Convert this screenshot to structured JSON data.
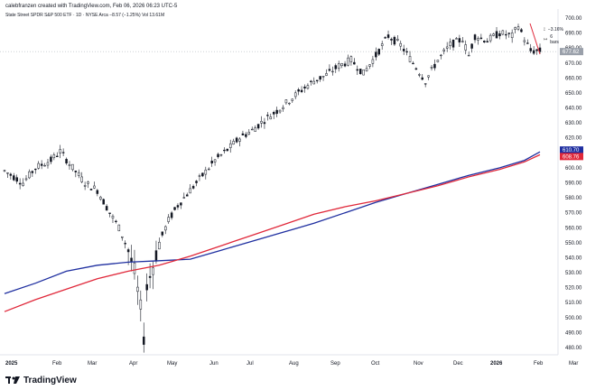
{
  "header": {
    "author_line": "calebfranzen created with TradingView.com, Feb 06, 2026 06:23 UTC-5",
    "symbol_line": "State Street SPDR S&P 500 ETF · 1D · NYSE Arca  −8.57 (−1.25%)  Vol 13.61M"
  },
  "footer": {
    "brand": "TradingView"
  },
  "measure": {
    "pct": "−3.16%",
    "bars": "6 bars"
  },
  "colors": {
    "candle": "#131722",
    "ma_blue": "#1f2fa0",
    "ma_red": "#e0283a",
    "price_badge": "#9aa0aa",
    "measure_line": "#e0283a"
  },
  "chart_data": {
    "type": "candlestick",
    "y_axis": {
      "min": 480,
      "max": 700,
      "step": 10,
      "position": "right"
    },
    "x_labels": [
      "2025",
      "Feb",
      "Mar",
      "Apr",
      "May",
      "Jun",
      "Jul",
      "Aug",
      "Sep",
      "Oct",
      "Nov",
      "Dec",
      "2026",
      "Feb",
      "Mar"
    ],
    "x_labels_bold": [
      "2025",
      "2026"
    ],
    "last_price": "677.62",
    "series": [
      {
        "name": "",
        "kind": "moving-average",
        "color": "#1f2fa0",
        "last_label": "610.70",
        "points": [
          [
            0,
            516
          ],
          [
            10,
            523
          ],
          [
            20,
            531
          ],
          [
            30,
            535
          ],
          [
            40,
            537
          ],
          [
            50,
            538
          ],
          [
            60,
            539
          ],
          [
            70,
            545
          ],
          [
            80,
            551
          ],
          [
            90,
            557
          ],
          [
            100,
            563
          ],
          [
            110,
            570
          ],
          [
            120,
            577
          ],
          [
            130,
            583
          ],
          [
            140,
            589
          ],
          [
            150,
            595
          ],
          [
            160,
            600
          ],
          [
            168,
            605
          ],
          [
            173,
            610.7
          ]
        ]
      },
      {
        "name": "",
        "kind": "moving-average",
        "color": "#e0283a",
        "last_label": "608.76",
        "points": [
          [
            0,
            504
          ],
          [
            10,
            512
          ],
          [
            20,
            519
          ],
          [
            30,
            526
          ],
          [
            40,
            531
          ],
          [
            50,
            535
          ],
          [
            60,
            541
          ],
          [
            70,
            548
          ],
          [
            80,
            555
          ],
          [
            90,
            562
          ],
          [
            100,
            569
          ],
          [
            110,
            574
          ],
          [
            120,
            578
          ],
          [
            130,
            583
          ],
          [
            140,
            588
          ],
          [
            150,
            594
          ],
          [
            160,
            599
          ],
          [
            168,
            604
          ],
          [
            173,
            608.76
          ]
        ]
      }
    ],
    "price_path": [
      [
        0,
        598
      ],
      [
        6,
        590
      ],
      [
        10,
        600
      ],
      [
        15,
        605
      ],
      [
        18,
        611
      ],
      [
        22,
        600
      ],
      [
        26,
        590
      ],
      [
        30,
        585
      ],
      [
        34,
        570
      ],
      [
        37,
        560
      ],
      [
        40,
        545
      ],
      [
        42,
        530
      ],
      [
        44,
        505
      ],
      [
        45,
        488
      ],
      [
        46,
        520
      ],
      [
        48,
        535
      ],
      [
        50,
        550
      ],
      [
        53,
        565
      ],
      [
        56,
        575
      ],
      [
        60,
        585
      ],
      [
        64,
        595
      ],
      [
        68,
        605
      ],
      [
        72,
        612
      ],
      [
        76,
        620
      ],
      [
        80,
        625
      ],
      [
        84,
        632
      ],
      [
        88,
        638
      ],
      [
        92,
        645
      ],
      [
        96,
        652
      ],
      [
        100,
        658
      ],
      [
        104,
        662
      ],
      [
        108,
        668
      ],
      [
        112,
        672
      ],
      [
        116,
        663
      ],
      [
        120,
        675
      ],
      [
        124,
        688
      ],
      [
        128,
        682
      ],
      [
        132,
        670
      ],
      [
        136,
        658
      ],
      [
        140,
        672
      ],
      [
        144,
        682
      ],
      [
        148,
        686
      ],
      [
        150,
        675
      ],
      [
        152,
        688
      ],
      [
        156,
        685
      ],
      [
        160,
        690
      ],
      [
        164,
        688
      ],
      [
        166,
        695
      ],
      [
        168,
        686
      ],
      [
        170,
        678
      ],
      [
        172,
        678
      ]
    ]
  }
}
